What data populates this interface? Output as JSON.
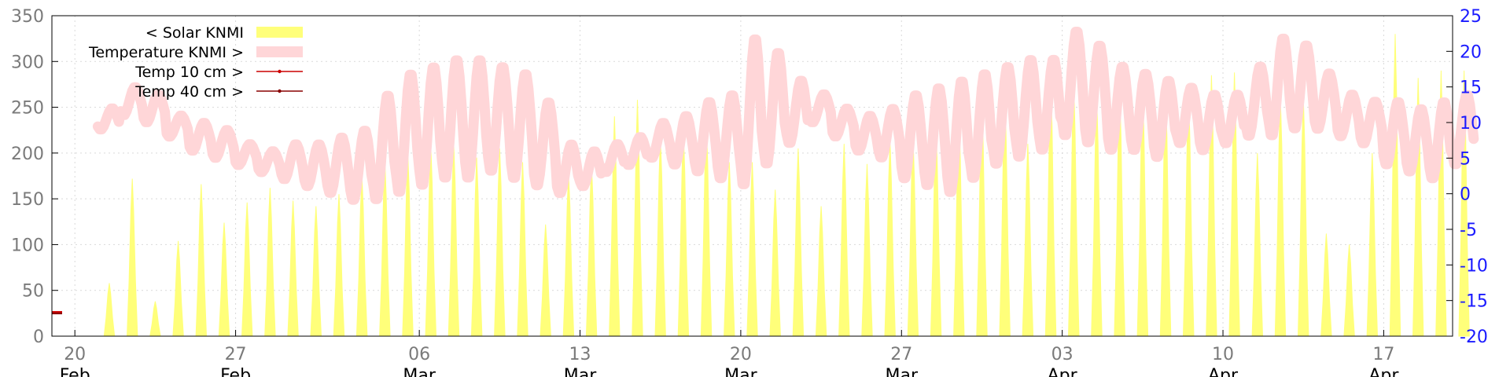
{
  "chart_data": {
    "type": "area",
    "title": "",
    "xlabel": "",
    "ylabel": "",
    "y2label": "",
    "x_start": "2024-02-19",
    "x_end": "2024-04-20",
    "ylim": [
      0,
      350
    ],
    "y2lim": [
      -20,
      25
    ],
    "y_ticks": [
      "0",
      "50",
      "100",
      "150",
      "200",
      "250",
      "300",
      "350"
    ],
    "y2_ticks": [
      "-20",
      "-15",
      "-10",
      "-5",
      "0",
      "5",
      "10",
      "15",
      "20",
      "25"
    ],
    "x_ticks": [
      {
        "date": "2024-02-20",
        "day": "20",
        "month": "Feb"
      },
      {
        "date": "2024-02-27",
        "day": "27",
        "month": "Feb"
      },
      {
        "date": "2024-03-06",
        "day": "06",
        "month": "Mar"
      },
      {
        "date": "2024-03-13",
        "day": "13",
        "month": "Mar"
      },
      {
        "date": "2024-03-20",
        "day": "20",
        "month": "Mar"
      },
      {
        "date": "2024-03-27",
        "day": "27",
        "month": "Mar"
      },
      {
        "date": "2024-04-03",
        "day": "03",
        "month": "Apr"
      },
      {
        "date": "2024-04-10",
        "day": "10",
        "month": "Apr"
      },
      {
        "date": "2024-04-17",
        "day": "17",
        "month": "Apr"
      }
    ],
    "grid": true,
    "legend_position": "top-left",
    "colors": {
      "solar": "#ffff7a",
      "temperature": "#ffd6d8",
      "temp10": "#cc0000",
      "temp40": "#880000",
      "axis_left": "#7a7a7a",
      "axis_right": "#1a1aff"
    },
    "series": [
      {
        "name": "< Solar KNMI",
        "axis": "left",
        "style": "filled-area",
        "daily_peak": {
          "dates": [
            "2024-02-21",
            "2024-02-22",
            "2024-02-23",
            "2024-02-24",
            "2024-02-25",
            "2024-02-26",
            "2024-02-27",
            "2024-02-28",
            "2024-02-29",
            "2024-03-01",
            "2024-03-02",
            "2024-03-03",
            "2024-03-04",
            "2024-03-05",
            "2024-03-06",
            "2024-03-07",
            "2024-03-08",
            "2024-03-09",
            "2024-03-10",
            "2024-03-11",
            "2024-03-12",
            "2024-03-13",
            "2024-03-14",
            "2024-03-15",
            "2024-03-16",
            "2024-03-17",
            "2024-03-18",
            "2024-03-19",
            "2024-03-20",
            "2024-03-21",
            "2024-03-22",
            "2024-03-23",
            "2024-03-24",
            "2024-03-25",
            "2024-03-26",
            "2024-03-27",
            "2024-03-28",
            "2024-03-29",
            "2024-03-30",
            "2024-03-31",
            "2024-04-01",
            "2024-04-02",
            "2024-04-03",
            "2024-04-04",
            "2024-04-05",
            "2024-04-06",
            "2024-04-07",
            "2024-04-08",
            "2024-04-09",
            "2024-04-10",
            "2024-04-11",
            "2024-04-12",
            "2024-04-13",
            "2024-04-14",
            "2024-04-15",
            "2024-04-16",
            "2024-04-17",
            "2024-04-18",
            "2024-04-19",
            "2024-04-20"
          ],
          "values": [
            58,
            172,
            38,
            104,
            166,
            124,
            146,
            162,
            148,
            142,
            155,
            175,
            190,
            200,
            210,
            210,
            195,
            205,
            190,
            122,
            178,
            188,
            240,
            258,
            218,
            225,
            235,
            190,
            190,
            160,
            205,
            142,
            210,
            188,
            212,
            218,
            232,
            245,
            258,
            265,
            210,
            282,
            278,
            262,
            272,
            274,
            272,
            268,
            285,
            288,
            200,
            262,
            262,
            112,
            100,
            200,
            330,
            282,
            290,
            290
          ]
        }
      },
      {
        "name": "Temperature KNMI >",
        "axis": "right",
        "style": "thick-band",
        "daily_range": {
          "dates": [
            "2024-02-21",
            "2024-02-22",
            "2024-02-23",
            "2024-02-24",
            "2024-02-25",
            "2024-02-26",
            "2024-02-27",
            "2024-02-28",
            "2024-02-29",
            "2024-03-01",
            "2024-03-02",
            "2024-03-03",
            "2024-03-04",
            "2024-03-05",
            "2024-03-06",
            "2024-03-07",
            "2024-03-08",
            "2024-03-09",
            "2024-03-10",
            "2024-03-11",
            "2024-03-12",
            "2024-03-13",
            "2024-03-14",
            "2024-03-15",
            "2024-03-16",
            "2024-03-17",
            "2024-03-18",
            "2024-03-19",
            "2024-03-20",
            "2024-03-21",
            "2024-03-22",
            "2024-03-23",
            "2024-03-24",
            "2024-03-25",
            "2024-03-26",
            "2024-03-27",
            "2024-03-28",
            "2024-03-29",
            "2024-03-30",
            "2024-03-31",
            "2024-04-01",
            "2024-04-02",
            "2024-04-03",
            "2024-04-04",
            "2024-04-05",
            "2024-04-06",
            "2024-04-07",
            "2024-04-08",
            "2024-04-09",
            "2024-04-10",
            "2024-04-11",
            "2024-04-12",
            "2024-04-13",
            "2024-04-14",
            "2024-04-15",
            "2024-04-16",
            "2024-04-17",
            "2024-04-18",
            "2024-04-19",
            "2024-04-20"
          ],
          "min": [
            9,
            11,
            10,
            8,
            6,
            5,
            4,
            3,
            2,
            1,
            0,
            -1,
            -1,
            0,
            1,
            2,
            2,
            3,
            2,
            1,
            0,
            1,
            3,
            4,
            5,
            4,
            3,
            2,
            1,
            4,
            7,
            10,
            8,
            6,
            5,
            2,
            1,
            0,
            2,
            4,
            5,
            6,
            8,
            7,
            6,
            6,
            5,
            7,
            6,
            7,
            8,
            8,
            9,
            9,
            8,
            7,
            4,
            3,
            2,
            4
          ],
          "max": [
            12,
            15,
            14,
            11,
            10,
            9,
            7,
            6,
            7,
            7,
            8,
            9,
            14,
            17,
            18,
            19,
            19,
            18,
            17,
            13,
            7,
            6,
            7,
            8,
            10,
            11,
            13,
            14,
            22,
            20,
            16,
            14,
            12,
            11,
            12,
            14,
            15,
            16,
            17,
            18,
            19,
            19,
            23,
            21,
            18,
            17,
            16,
            15,
            14,
            14,
            18,
            22,
            21,
            17,
            14,
            13,
            13,
            12,
            13,
            14
          ]
        }
      },
      {
        "name": "Temp 10 cm >",
        "axis": "right",
        "style": "line-points",
        "points": [
          {
            "x": "2024-02-19",
            "y": -16.7
          }
        ]
      },
      {
        "name": "Temp 40 cm >",
        "axis": "right",
        "style": "line-points",
        "points": [
          {
            "x": "2024-02-19",
            "y": -16.7
          }
        ]
      }
    ]
  }
}
